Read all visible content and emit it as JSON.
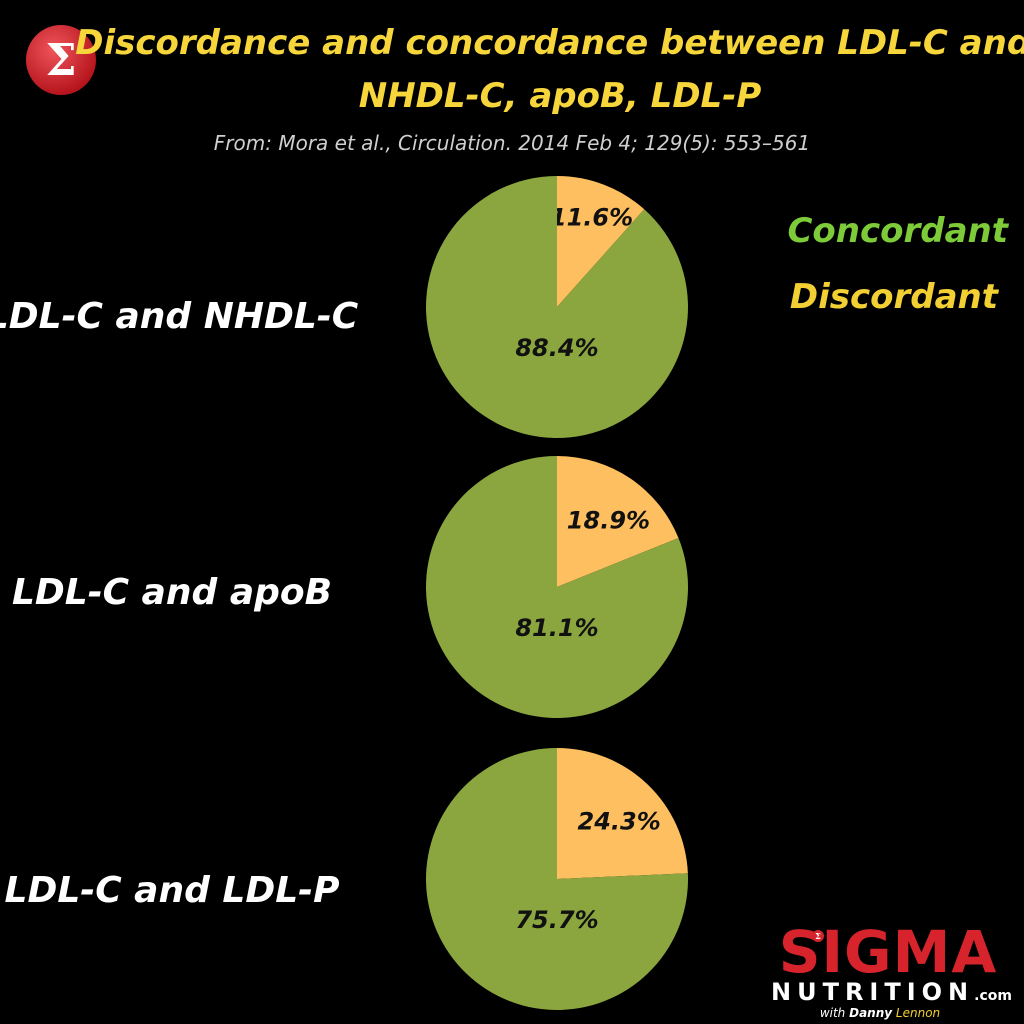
{
  "title_line1": "Discordance and concordance between LDL-C and:",
  "title_line2": "NHDL-C, apoB, LDL-P",
  "source": "From: Mora et al., Circulation. 2014 Feb 4; 129(5): 553–561",
  "colors": {
    "title": "#f7d63c",
    "source": "#cfcfcf",
    "concordant": "#8ca63f",
    "discordant": "#fdbf5f",
    "legend_concordant": "#7ecb3a",
    "legend_discordant": "#f2cf32",
    "labels": "#ffffff",
    "logo_red": "#d7232c"
  },
  "legend": {
    "concordant": "Concordant",
    "discordant": "Discordant"
  },
  "chart_data": [
    {
      "type": "pie",
      "label": "LDL-C and NHDL-C",
      "slices": [
        {
          "name": "Discordant",
          "value": 11.6,
          "label": "11.6%"
        },
        {
          "name": "Concordant",
          "value": 88.4,
          "label": "88.4%"
        }
      ]
    },
    {
      "type": "pie",
      "label": "LDL-C and apoB",
      "slices": [
        {
          "name": "Discordant",
          "value": 18.9,
          "label": "18.9%"
        },
        {
          "name": "Concordant",
          "value": 81.1,
          "label": "81.1%"
        }
      ]
    },
    {
      "type": "pie",
      "label": "LDL-C and LDL-P",
      "slices": [
        {
          "name": "Discordant",
          "value": 24.3,
          "label": "24.3%"
        },
        {
          "name": "Concordant",
          "value": 75.7,
          "label": "75.7%"
        }
      ]
    }
  ],
  "logo": {
    "icon_icon": "sigma-icon",
    "brand_top": "SIGMA",
    "brand_bottom": "NUTRITION",
    "brand_suffix": ".com",
    "byline_prefix": "with",
    "byline_first": "Danny",
    "byline_last": "Lennon"
  }
}
